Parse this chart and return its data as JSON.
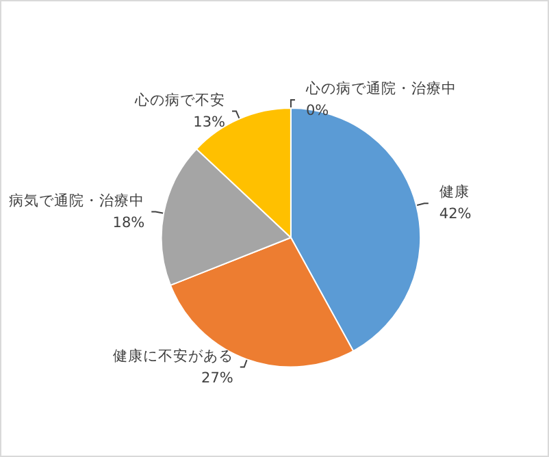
{
  "chart_data": {
    "type": "pie",
    "categories": [
      "健康",
      "健康に不安がある",
      "病気で通院・治療中",
      "心の病で不安",
      "心の病で通院・治療中"
    ],
    "values": [
      42,
      27,
      18,
      13,
      0
    ],
    "colors": [
      "#5b9bd5",
      "#ed7d31",
      "#a5a5a5",
      "#ffc000",
      "#4472c4"
    ],
    "legend": false,
    "value_labels": [
      "42%",
      "27%",
      "18%",
      "13%",
      "0%"
    ]
  }
}
